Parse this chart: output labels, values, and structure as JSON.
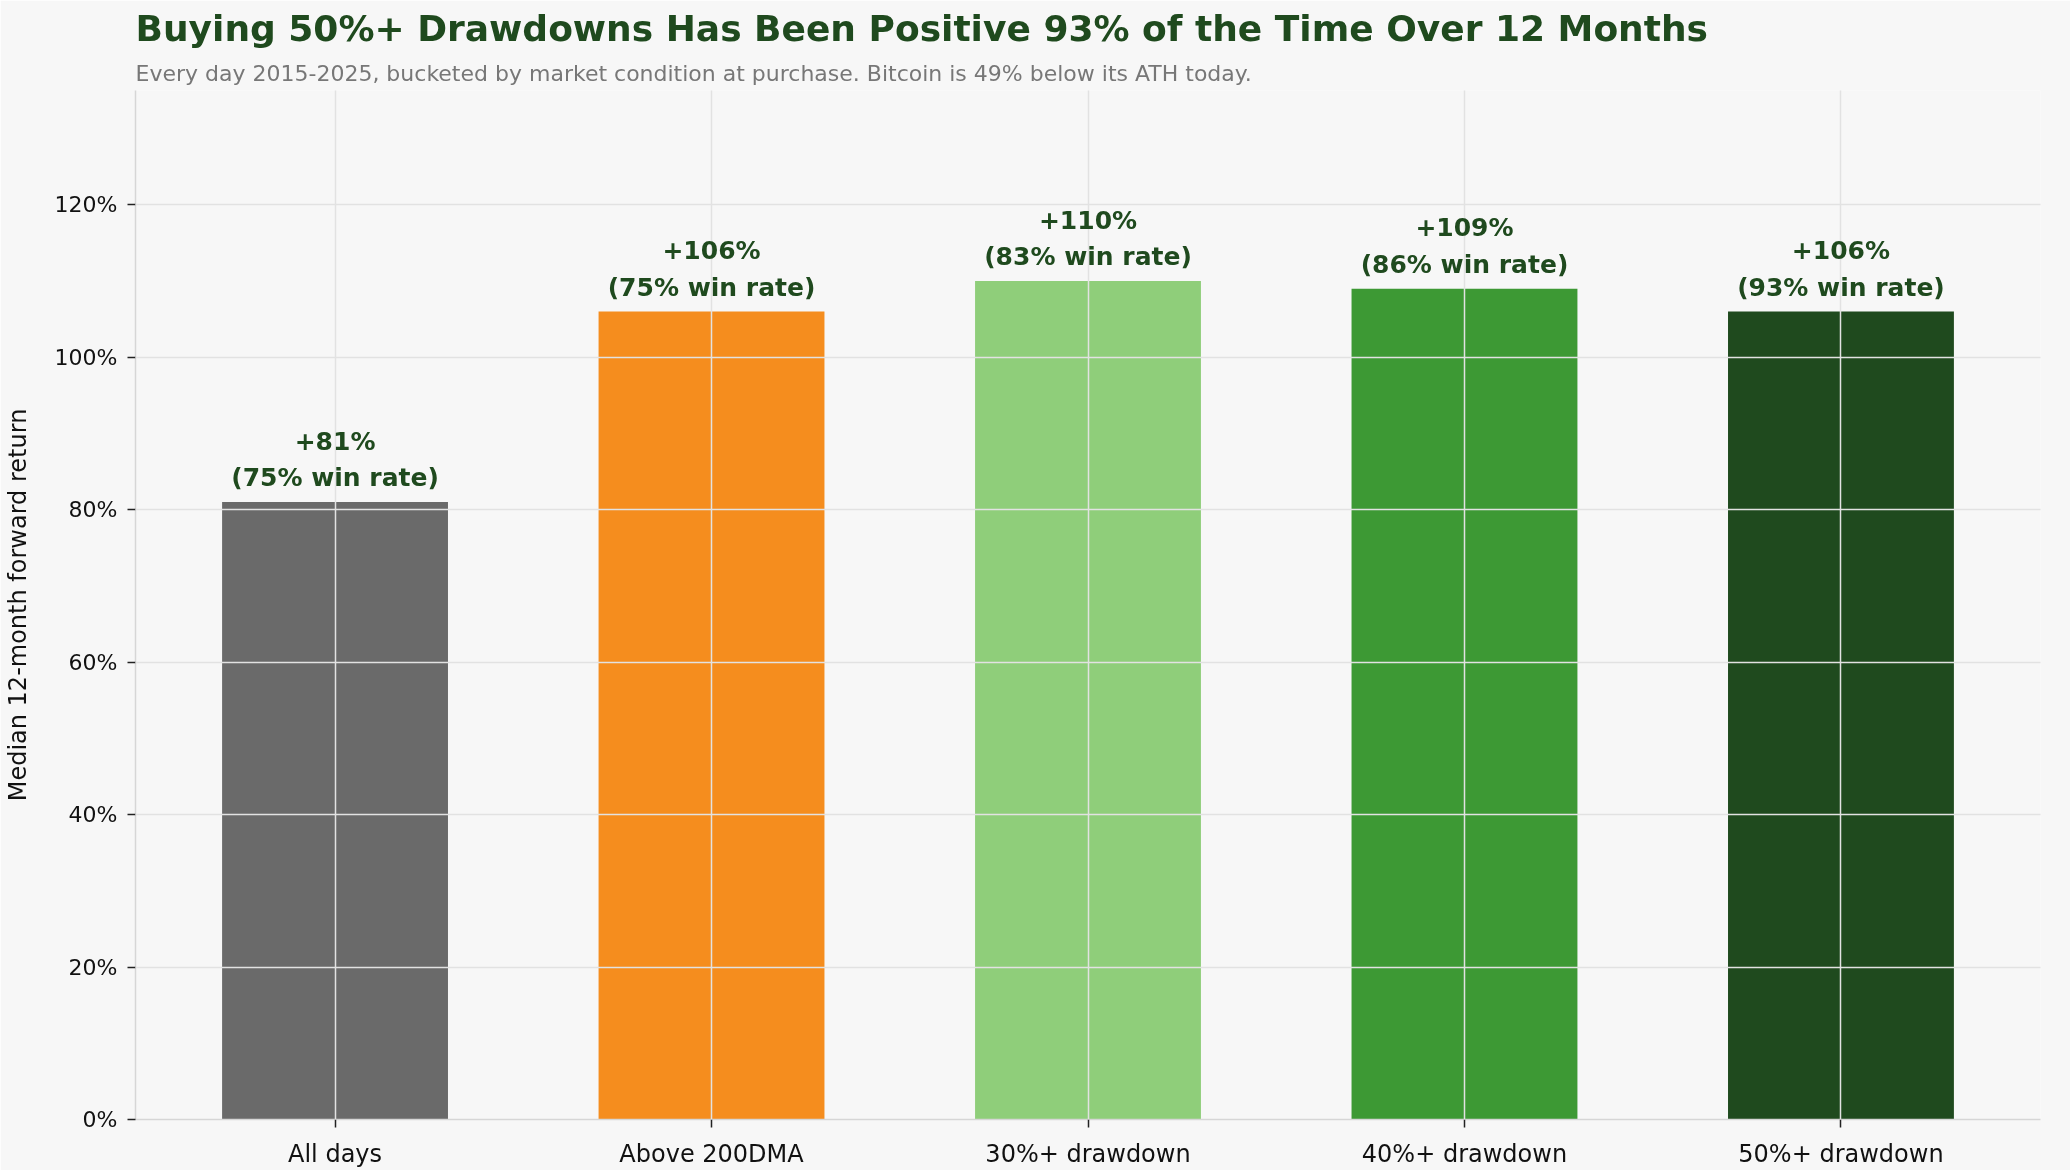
{
  "chart_data": {
    "type": "bar",
    "title": "Buying 50%+ Drawdowns Has Been Positive 93% of the Time Over 12 Months",
    "subtitle": "Every day 2015-2025, bucketed by market condition at purchase. Bitcoin is 49% below its ATH today.",
    "ylabel": "Median 12-month forward return",
    "categories": [
      "All days",
      "Above 200DMA",
      "30%+ drawdown",
      "40%+ drawdown",
      "50%+ drawdown"
    ],
    "values": [
      81,
      106,
      110,
      109,
      106
    ],
    "colors": [
      "#6a6a6a",
      "#f58d1e",
      "#8fce7a",
      "#3d9934",
      "#1f4a1e"
    ],
    "value_labels": [
      "+81%\n(75% win rate)",
      "+106%\n(75% win rate)",
      "+110%\n(83% win rate)",
      "+109%\n(86% win rate)",
      "+106%\n(93% win rate)"
    ],
    "ylim": [
      0,
      135
    ],
    "yticks": [
      {
        "value": 0,
        "label": "0%"
      },
      {
        "value": 20,
        "label": "20%"
      },
      {
        "value": 40,
        "label": "40%"
      },
      {
        "value": 60,
        "label": "60%"
      },
      {
        "value": 80,
        "label": "80%"
      },
      {
        "value": 100,
        "label": "100%"
      },
      {
        "value": 120,
        "label": "120%"
      }
    ],
    "grid": true
  }
}
